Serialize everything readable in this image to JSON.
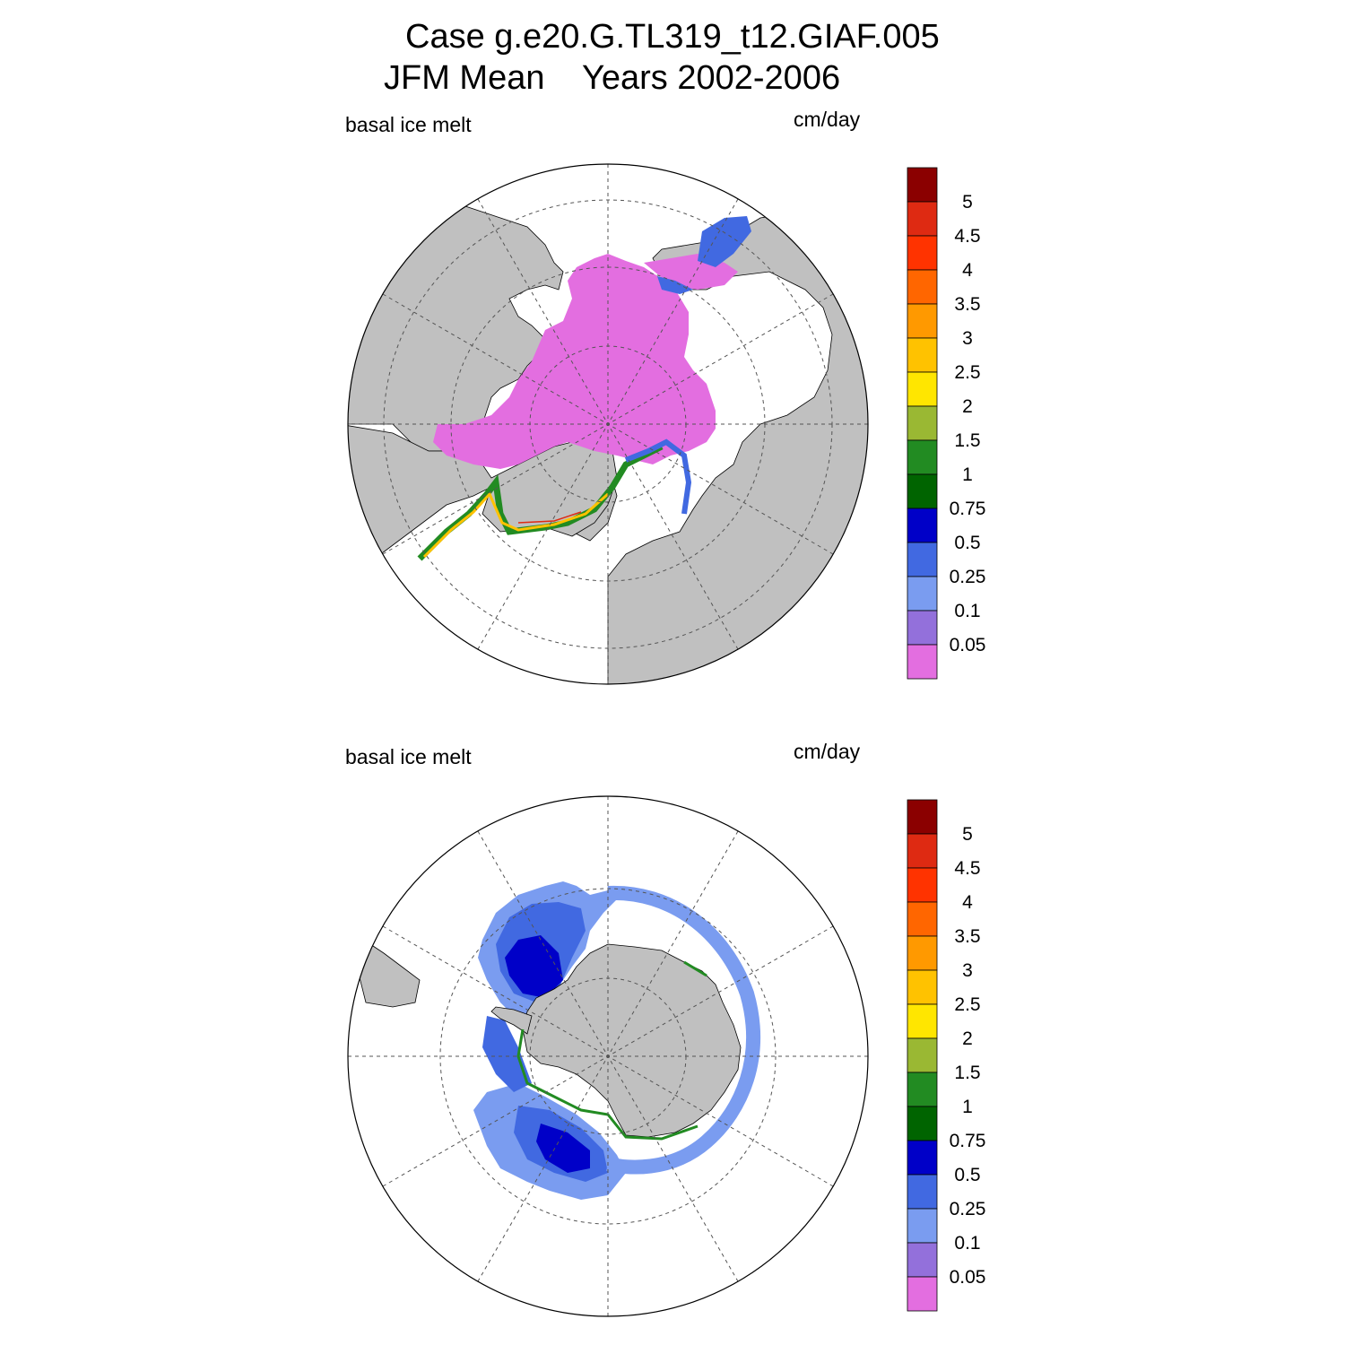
{
  "header": {
    "title_line1": "Case g.e20.G.TL319_t12.GIAF.005",
    "title_line2": "JFM Mean    Years 2002-2006"
  },
  "colors": {
    "land": "#c0c0c0",
    "ocean": "#ffffff",
    "gridline": "#555555"
  },
  "colorbar": {
    "levels": [
      "0.05",
      "0.1",
      "0.25",
      "0.5",
      "0.75",
      "1",
      "1.5",
      "2",
      "2.5",
      "3",
      "3.5",
      "4",
      "4.5",
      "5"
    ],
    "colors": [
      "#e36ee0",
      "#9370db",
      "#7a9cf0",
      "#4169e1",
      "#0000c8",
      "#006400",
      "#228b22",
      "#9ab833",
      "#ffe600",
      "#ffc200",
      "#ff9900",
      "#ff6600",
      "#ff3300",
      "#de2a12",
      "#8b0000"
    ]
  },
  "panels": [
    {
      "variable": "basal ice melt",
      "units": "cm/day",
      "hemisphere": "north"
    },
    {
      "variable": "basal ice melt",
      "units": "cm/day",
      "hemisphere": "south"
    }
  ]
}
